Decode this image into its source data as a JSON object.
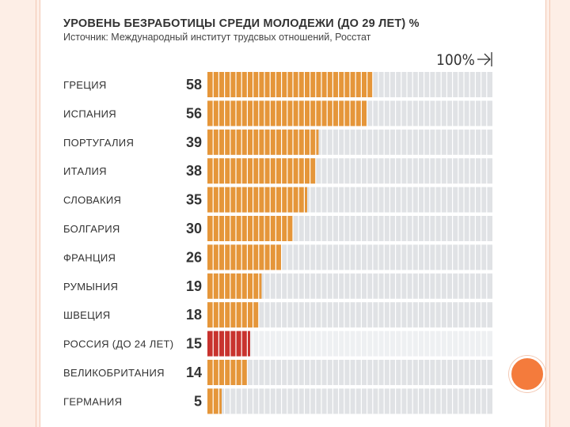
{
  "chart_data": {
    "type": "bar",
    "orientation": "horizontal",
    "title": "УРОВЕНЬ БЕЗРАБОТИЦЫ СРЕДИ МОЛОДЕЖИ (ДО 29 ЛЕТ) %",
    "subtitle": "Источник: Международный институт трудсвых отношений, Росстат",
    "scale_label": "100%",
    "xlim": [
      0,
      100
    ],
    "categories": [
      "ГРЕЦИЯ",
      "ИСПАНИЯ",
      "ПОРТУГАЛИЯ",
      "ИТАЛИЯ",
      "СЛОВАКИЯ",
      "БОЛГАРИЯ",
      "ФРАНЦИЯ",
      "РУМЫНИЯ",
      "ШВЕЦИЯ",
      "РОССИЯ (ДО 24 ЛЕТ)",
      "ВЕЛИКОБРИТАНИЯ",
      "ГЕРМАНИЯ"
    ],
    "values": [
      58,
      56,
      39,
      38,
      35,
      30,
      26,
      19,
      18,
      15,
      14,
      5
    ],
    "highlight": "РОССИЯ (ДО 24 ЛЕТ)",
    "colors": {
      "bar": "#e5963a",
      "highlight_bar": "#c8332e",
      "background_bar": "#e0e2e5",
      "highlight_background_bar": "#eef0f2",
      "segment_line": "#ffffff"
    }
  },
  "decor": {
    "scale_icon": "arrow-to-edge-icon",
    "accent_circle_color": "#f47b3c"
  }
}
